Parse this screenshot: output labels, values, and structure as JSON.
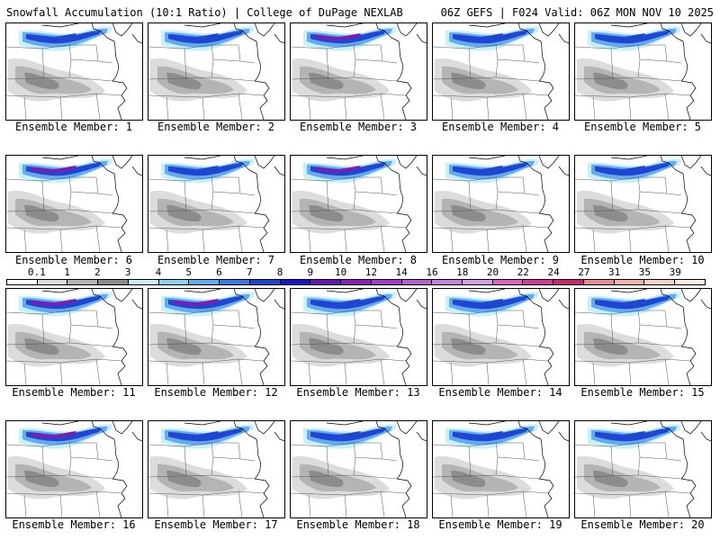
{
  "header": {
    "title": "Snowfall Accumulation (10:1 Ratio) | College of DuPage NEXLAB",
    "run_info": "06Z GEFS | F024 Valid: 06Z MON NOV 10 2025"
  },
  "members": [
    {
      "label": "Ensemble Member: 1",
      "core": "light"
    },
    {
      "label": "Ensemble Member: 2",
      "core": "light"
    },
    {
      "label": "Ensemble Member: 3",
      "core": "heavy"
    },
    {
      "label": "Ensemble Member: 4",
      "core": "light"
    },
    {
      "label": "Ensemble Member: 5",
      "core": "light"
    },
    {
      "label": "Ensemble Member: 6",
      "core": "heavy"
    },
    {
      "label": "Ensemble Member: 7",
      "core": "light"
    },
    {
      "label": "Ensemble Member: 8",
      "core": "heavy"
    },
    {
      "label": "Ensemble Member: 9",
      "core": "light"
    },
    {
      "label": "Ensemble Member: 10",
      "core": "light"
    },
    {
      "label": "Ensemble Member: 11",
      "core": "heavy"
    },
    {
      "label": "Ensemble Member: 12",
      "core": "heavy"
    },
    {
      "label": "Ensemble Member: 13",
      "core": "light"
    },
    {
      "label": "Ensemble Member: 14",
      "core": "light"
    },
    {
      "label": "Ensemble Member: 15",
      "core": "light"
    },
    {
      "label": "Ensemble Member: 16",
      "core": "heavy"
    },
    {
      "label": "Ensemble Member: 17",
      "core": "light"
    },
    {
      "label": "Ensemble Member: 18",
      "core": "light"
    },
    {
      "label": "Ensemble Member: 19",
      "core": "light"
    },
    {
      "label": "Ensemble Member: 20",
      "core": "light"
    }
  ],
  "legend": {
    "unit_values": [
      "0.1",
      "1",
      "2",
      "3",
      "4",
      "5",
      "6",
      "7",
      "8",
      "9",
      "10",
      "12",
      "14",
      "16",
      "18",
      "20",
      "22",
      "24",
      "27",
      "31",
      "35",
      "39"
    ],
    "colors": [
      "#ffffff",
      "#dcdcdc",
      "#b4b4b4",
      "#8c8c8c",
      "#c8f0f8",
      "#8cd2f0",
      "#64aaf0",
      "#3c78e6",
      "#1e46d2",
      "#1414c8",
      "#6414b4",
      "#8c1eb4",
      "#a03cc8",
      "#b464d2",
      "#c882dc",
      "#d2a0e6",
      "#dc64be",
      "#d23c96",
      "#c8286e",
      "#e68c8c",
      "#f0b4aa",
      "#f8d2c8",
      "#fcece4"
    ]
  }
}
